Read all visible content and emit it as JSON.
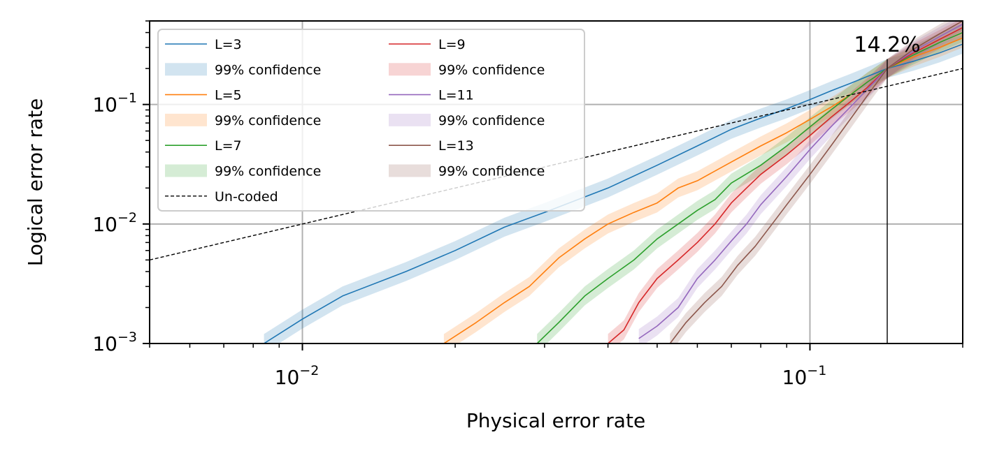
{
  "chart_data": {
    "type": "line",
    "xlabel": "Physical error rate",
    "ylabel": "Logical error rate",
    "x_scale": "log",
    "y_scale": "log",
    "xlim": [
      0.005,
      0.2
    ],
    "ylim": [
      0.001,
      0.5
    ],
    "grid": true,
    "legend_placement": "upper-left",
    "legend_columns": 2,
    "x_major_ticks": [
      {
        "value": 0.01,
        "base": "10",
        "exp": "−2"
      },
      {
        "value": 0.1,
        "base": "10",
        "exp": "−1"
      }
    ],
    "y_major_ticks": [
      {
        "value": 0.001,
        "base": "10",
        "exp": "−3"
      },
      {
        "value": 0.01,
        "base": "10",
        "exp": "−2"
      },
      {
        "value": 0.1,
        "base": "10",
        "exp": "−1"
      }
    ],
    "threshold": {
      "x": 0.142,
      "label": "14.2%"
    },
    "confidence_label": "99% confidence",
    "series": [
      {
        "name": "L=3",
        "color": "#1f77b4",
        "x": [
          0.0084,
          0.01,
          0.012,
          0.016,
          0.02,
          0.025,
          0.03,
          0.04,
          0.05,
          0.06,
          0.07,
          0.08,
          0.09,
          0.1,
          0.11,
          0.12,
          0.13,
          0.142,
          0.16,
          0.18,
          0.2
        ],
        "y": [
          0.001,
          0.0016,
          0.0025,
          0.004,
          0.006,
          0.0094,
          0.0125,
          0.02,
          0.031,
          0.045,
          0.062,
          0.077,
          0.092,
          0.11,
          0.13,
          0.15,
          0.172,
          0.2,
          0.23,
          0.27,
          0.32
        ]
      },
      {
        "name": "L=5",
        "color": "#ff7f0e",
        "x": [
          0.019,
          0.022,
          0.025,
          0.028,
          0.032,
          0.036,
          0.04,
          0.045,
          0.05,
          0.055,
          0.06,
          0.07,
          0.08,
          0.09,
          0.1,
          0.11,
          0.12,
          0.13,
          0.142,
          0.16,
          0.18,
          0.2
        ],
        "y": [
          0.001,
          0.0015,
          0.0022,
          0.003,
          0.0052,
          0.0075,
          0.01,
          0.0125,
          0.015,
          0.02,
          0.023,
          0.033,
          0.045,
          0.058,
          0.075,
          0.095,
          0.12,
          0.155,
          0.2,
          0.25,
          0.3,
          0.36
        ]
      },
      {
        "name": "L=7",
        "color": "#2ca02c",
        "x": [
          0.029,
          0.032,
          0.036,
          0.04,
          0.045,
          0.05,
          0.055,
          0.06,
          0.065,
          0.07,
          0.08,
          0.09,
          0.1,
          0.11,
          0.12,
          0.13,
          0.142,
          0.16,
          0.18,
          0.2
        ],
        "y": [
          0.001,
          0.0015,
          0.0025,
          0.0035,
          0.005,
          0.0075,
          0.01,
          0.013,
          0.016,
          0.022,
          0.031,
          0.045,
          0.065,
          0.09,
          0.12,
          0.155,
          0.2,
          0.26,
          0.33,
          0.4
        ]
      },
      {
        "name": "L=9",
        "color": "#d62728",
        "x": [
          0.04,
          0.043,
          0.046,
          0.05,
          0.055,
          0.06,
          0.065,
          0.07,
          0.075,
          0.08,
          0.09,
          0.1,
          0.11,
          0.12,
          0.13,
          0.142,
          0.16,
          0.18,
          0.2
        ],
        "y": [
          0.001,
          0.0013,
          0.0022,
          0.0035,
          0.005,
          0.007,
          0.01,
          0.015,
          0.02,
          0.026,
          0.038,
          0.055,
          0.078,
          0.105,
          0.14,
          0.2,
          0.27,
          0.35,
          0.44
        ]
      },
      {
        "name": "L=11",
        "color": "#9467bd",
        "x": [
          0.046,
          0.05,
          0.055,
          0.06,
          0.065,
          0.07,
          0.075,
          0.08,
          0.09,
          0.1,
          0.11,
          0.12,
          0.13,
          0.142,
          0.16,
          0.18,
          0.2
        ],
        "y": [
          0.0011,
          0.0014,
          0.002,
          0.0035,
          0.005,
          0.0072,
          0.01,
          0.0145,
          0.025,
          0.042,
          0.065,
          0.095,
          0.135,
          0.2,
          0.28,
          0.37,
          0.47
        ]
      },
      {
        "name": "L=13",
        "color": "#8c564b",
        "x": [
          0.053,
          0.057,
          0.062,
          0.067,
          0.072,
          0.078,
          0.085,
          0.09,
          0.1,
          0.11,
          0.12,
          0.13,
          0.142,
          0.16,
          0.18,
          0.2
        ],
        "y": [
          0.001,
          0.0015,
          0.0022,
          0.003,
          0.0045,
          0.0065,
          0.0105,
          0.0145,
          0.026,
          0.045,
          0.075,
          0.12,
          0.2,
          0.29,
          0.39,
          0.5
        ]
      }
    ],
    "reference_line": {
      "name": "Un-coded",
      "color": "#000000",
      "x": [
        0.005,
        0.2
      ],
      "y": [
        0.005,
        0.2
      ]
    }
  }
}
